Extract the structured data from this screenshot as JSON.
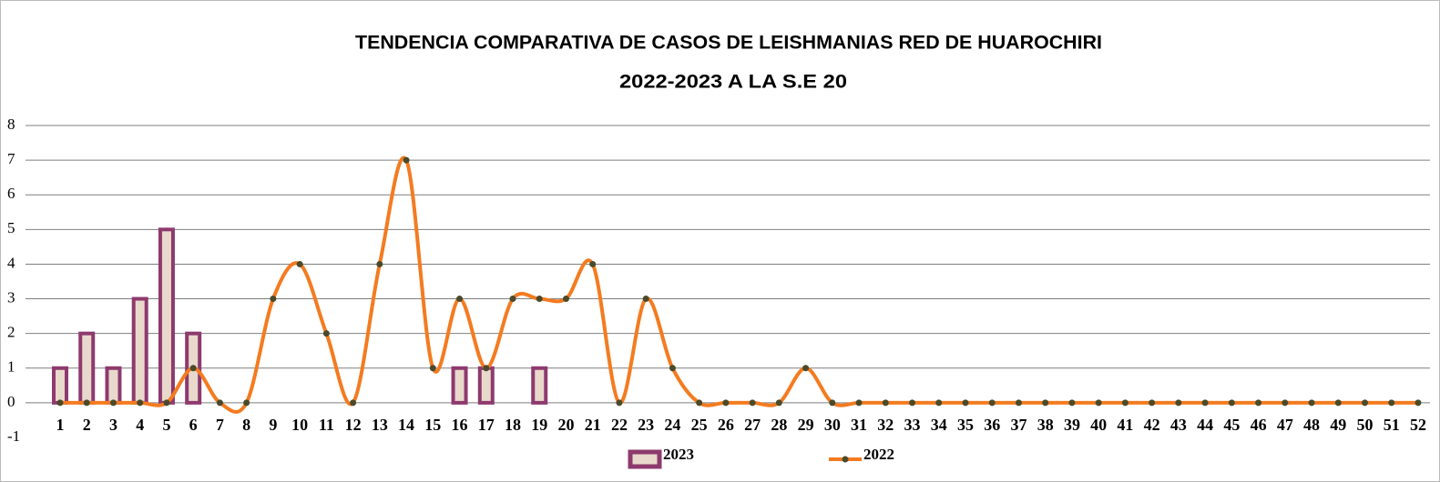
{
  "chart_data": {
    "type": "bar",
    "title": "TENDENCIA  COMPARATIVA  DE  CASOS  DE  LEISHMANIAS RED DE HUAROCHIRI",
    "subtitle": "2022-2023   A LA S.E  20",
    "categories": [
      "1",
      "2",
      "3",
      "4",
      "5",
      "6",
      "7",
      "8",
      "9",
      "10",
      "11",
      "12",
      "13",
      "14",
      "15",
      "16",
      "17",
      "18",
      "19",
      "20",
      "21",
      "22",
      "23",
      "24",
      "25",
      "26",
      "27",
      "28",
      "29",
      "30",
      "31",
      "32",
      "33",
      "34",
      "35",
      "36",
      "37",
      "38",
      "39",
      "40",
      "41",
      "42",
      "43",
      "44",
      "45",
      "46",
      "47",
      "48",
      "49",
      "50",
      "51",
      "52"
    ],
    "series": [
      {
        "name": "2023",
        "type": "bar",
        "color": "#8e3a6e",
        "fill": "#e8d9cc",
        "values": [
          1,
          2,
          1,
          3,
          5,
          2,
          0,
          0,
          0,
          0,
          0,
          0,
          0,
          0,
          0,
          1,
          1,
          0,
          1,
          0,
          null,
          null,
          null,
          null,
          null,
          null,
          null,
          null,
          null,
          null,
          null,
          null,
          null,
          null,
          null,
          null,
          null,
          null,
          null,
          null,
          null,
          null,
          null,
          null,
          null,
          null,
          null,
          null,
          null,
          null,
          null,
          null
        ]
      },
      {
        "name": "2022",
        "type": "line",
        "color": "#f47b20",
        "marker_color": "#4a4a2a",
        "values": [
          0,
          0,
          0,
          0,
          0,
          1,
          0,
          0,
          3,
          4,
          2,
          0,
          4,
          7,
          1,
          3,
          1,
          3,
          3,
          3,
          4,
          0,
          3,
          1,
          0,
          0,
          0,
          0,
          1,
          0,
          0,
          0,
          0,
          0,
          0,
          0,
          0,
          0,
          0,
          0,
          0,
          0,
          0,
          0,
          0,
          0,
          0,
          0,
          0,
          0,
          0,
          0
        ]
      }
    ],
    "ylim": [
      -1,
      8
    ],
    "yticks": [
      -1,
      0,
      1,
      2,
      3,
      4,
      5,
      6,
      7,
      8
    ],
    "grid": true,
    "smooth": true
  }
}
